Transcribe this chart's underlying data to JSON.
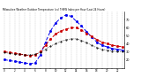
{
  "title": "Milwaukee Weather Outdoor Temperature (vs) THSW Index per Hour (Last 24 Hours)",
  "hours": [
    0,
    1,
    2,
    3,
    4,
    5,
    6,
    7,
    8,
    9,
    10,
    11,
    12,
    13,
    14,
    15,
    16,
    17,
    18,
    19,
    20,
    21,
    22,
    23
  ],
  "temp": [
    30,
    29,
    28,
    27,
    26,
    25,
    26,
    30,
    38,
    46,
    52,
    56,
    58,
    60,
    60,
    57,
    53,
    49,
    45,
    42,
    40,
    38,
    37,
    36
  ],
  "thsw": [
    20,
    19,
    18,
    17,
    16,
    15,
    16,
    26,
    42,
    56,
    66,
    72,
    76,
    74,
    68,
    62,
    55,
    48,
    42,
    38,
    36,
    34,
    33,
    32
  ],
  "black": [
    29,
    28,
    27,
    27,
    26,
    26,
    27,
    29,
    33,
    37,
    40,
    43,
    45,
    46,
    46,
    44,
    41,
    38,
    35,
    33,
    32,
    31,
    30,
    30
  ],
  "temp_color": "#cc0000",
  "thsw_color": "#0000ee",
  "black_color": "#000000",
  "ylim_min": 10,
  "ylim_max": 80,
  "ytick_vals": [
    20,
    30,
    40,
    50,
    60,
    70
  ],
  "ytick_labels": [
    "20",
    "30",
    "40",
    "50",
    "60",
    "70"
  ],
  "bg_color": "#ffffff",
  "grid_color": "#888888"
}
